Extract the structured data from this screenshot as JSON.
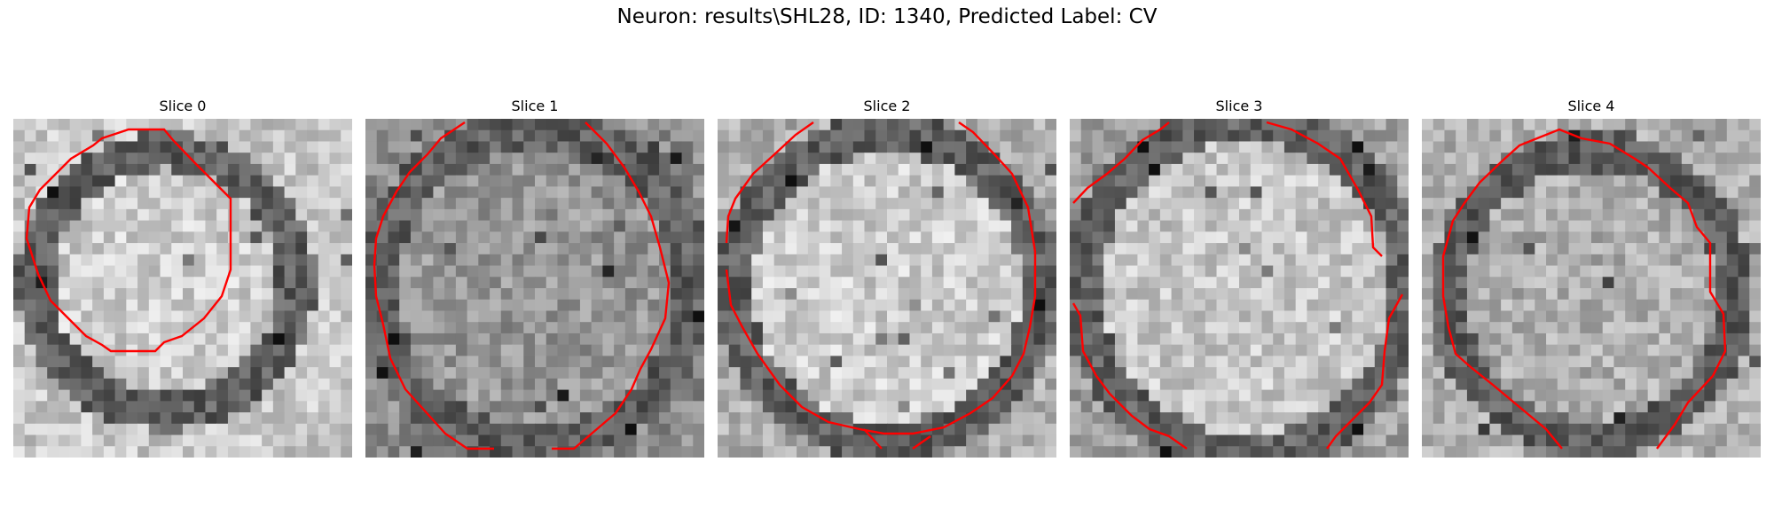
{
  "figure": {
    "title": "Neuron: results\\SHL28, ID: 1340, Predicted Label: CV"
  },
  "panels": [
    {
      "title": "Slice 0",
      "contour_color": "#ff0000"
    },
    {
      "title": "Slice 1",
      "contour_color": "#ff0000"
    },
    {
      "title": "Slice 2",
      "contour_color": "#ff0000"
    },
    {
      "title": "Slice 3",
      "contour_color": "#ff0000"
    },
    {
      "title": "Slice 4",
      "contour_color": "#ff0000"
    }
  ],
  "image": {
    "colormap": "grayscale",
    "pixel_grid": 30,
    "content": "electron microscopy image slices of a neuron cross-section with red contour outline"
  }
}
